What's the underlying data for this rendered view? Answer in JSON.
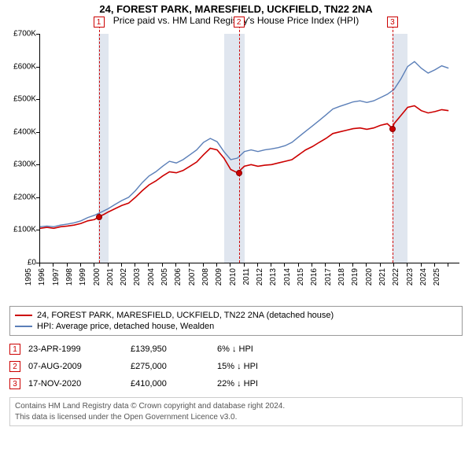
{
  "titles": {
    "main": "24, FOREST PARK, MARESFIELD, UCKFIELD, TN22 2NA",
    "sub": "Price paid vs. HM Land Registry's House Price Index (HPI)"
  },
  "chart": {
    "type": "line",
    "background_color": "#ffffff",
    "shade_color": "#e0e6ef",
    "axis_color": "#000000",
    "xlim": [
      1995,
      2025.8
    ],
    "ylim": [
      0,
      700000
    ],
    "yticks": [
      0,
      100000,
      200000,
      300000,
      400000,
      500000,
      600000,
      700000
    ],
    "ytick_labels": [
      "£0",
      "£100K",
      "£200K",
      "£300K",
      "£400K",
      "£500K",
      "£600K",
      "£700K"
    ],
    "xticks": [
      1995,
      1996,
      1997,
      1998,
      1999,
      2000,
      2001,
      2002,
      2003,
      2004,
      2005,
      2006,
      2007,
      2008,
      2009,
      2010,
      2011,
      2012,
      2013,
      2014,
      2015,
      2016,
      2017,
      2018,
      2019,
      2020,
      2021,
      2022,
      2023,
      2024,
      2025
    ],
    "xtick_labels": [
      "1995",
      "1996",
      "1997",
      "1998",
      "1999",
      "2000",
      "2001",
      "2002",
      "2003",
      "2004",
      "2005",
      "2006",
      "2007",
      "2008",
      "2009",
      "2010",
      "2011",
      "2012",
      "2013",
      "2014",
      "2015",
      "2016",
      "2017",
      "2018",
      "2019",
      "2020",
      "2021",
      "2022",
      "2023",
      "2024",
      "2025"
    ],
    "shaded_ranges": [
      [
        1999.3,
        2000.0
      ],
      [
        2008.5,
        2010.0
      ],
      [
        2020.9,
        2022.0
      ]
    ],
    "label_fontsize": 10,
    "series": [
      {
        "name": "property",
        "color": "#cc0000",
        "width": 1.6,
        "points": [
          [
            1995.0,
            105000
          ],
          [
            1995.5,
            108000
          ],
          [
            1996.0,
            105000
          ],
          [
            1996.5,
            110000
          ],
          [
            1997.0,
            112000
          ],
          [
            1997.5,
            115000
          ],
          [
            1998.0,
            120000
          ],
          [
            1998.5,
            128000
          ],
          [
            1999.0,
            132000
          ],
          [
            1999.3,
            139950
          ],
          [
            1999.7,
            148000
          ],
          [
            2000.0,
            155000
          ],
          [
            2000.5,
            165000
          ],
          [
            2001.0,
            175000
          ],
          [
            2001.5,
            182000
          ],
          [
            2002.0,
            200000
          ],
          [
            2002.5,
            220000
          ],
          [
            2003.0,
            238000
          ],
          [
            2003.5,
            250000
          ],
          [
            2004.0,
            265000
          ],
          [
            2004.5,
            278000
          ],
          [
            2005.0,
            275000
          ],
          [
            2005.5,
            282000
          ],
          [
            2006.0,
            295000
          ],
          [
            2006.5,
            308000
          ],
          [
            2007.0,
            330000
          ],
          [
            2007.5,
            350000
          ],
          [
            2008.0,
            345000
          ],
          [
            2008.5,
            320000
          ],
          [
            2009.0,
            285000
          ],
          [
            2009.5,
            275000
          ],
          [
            2010.0,
            295000
          ],
          [
            2010.5,
            300000
          ],
          [
            2011.0,
            295000
          ],
          [
            2011.5,
            298000
          ],
          [
            2012.0,
            300000
          ],
          [
            2012.5,
            305000
          ],
          [
            2013.0,
            310000
          ],
          [
            2013.5,
            315000
          ],
          [
            2014.0,
            330000
          ],
          [
            2014.5,
            345000
          ],
          [
            2015.0,
            355000
          ],
          [
            2015.5,
            368000
          ],
          [
            2016.0,
            380000
          ],
          [
            2016.5,
            395000
          ],
          [
            2017.0,
            400000
          ],
          [
            2017.5,
            405000
          ],
          [
            2018.0,
            410000
          ],
          [
            2018.5,
            412000
          ],
          [
            2019.0,
            408000
          ],
          [
            2019.5,
            412000
          ],
          [
            2020.0,
            420000
          ],
          [
            2020.5,
            425000
          ],
          [
            2020.9,
            410000
          ],
          [
            2021.0,
            425000
          ],
          [
            2021.5,
            450000
          ],
          [
            2022.0,
            475000
          ],
          [
            2022.5,
            480000
          ],
          [
            2023.0,
            465000
          ],
          [
            2023.5,
            458000
          ],
          [
            2024.0,
            462000
          ],
          [
            2024.5,
            468000
          ],
          [
            2025.0,
            465000
          ]
        ]
      },
      {
        "name": "hpi",
        "color": "#5b7fb8",
        "width": 1.4,
        "points": [
          [
            1995.0,
            110000
          ],
          [
            1995.5,
            112000
          ],
          [
            1996.0,
            110000
          ],
          [
            1996.5,
            115000
          ],
          [
            1997.0,
            118000
          ],
          [
            1997.5,
            122000
          ],
          [
            1998.0,
            128000
          ],
          [
            1998.5,
            138000
          ],
          [
            1999.0,
            145000
          ],
          [
            1999.5,
            155000
          ],
          [
            2000.0,
            165000
          ],
          [
            2000.5,
            178000
          ],
          [
            2001.0,
            190000
          ],
          [
            2001.5,
            200000
          ],
          [
            2002.0,
            220000
          ],
          [
            2002.5,
            245000
          ],
          [
            2003.0,
            265000
          ],
          [
            2003.5,
            278000
          ],
          [
            2004.0,
            295000
          ],
          [
            2004.5,
            310000
          ],
          [
            2005.0,
            305000
          ],
          [
            2005.5,
            315000
          ],
          [
            2006.0,
            330000
          ],
          [
            2006.5,
            345000
          ],
          [
            2007.0,
            368000
          ],
          [
            2007.5,
            380000
          ],
          [
            2008.0,
            370000
          ],
          [
            2008.5,
            340000
          ],
          [
            2009.0,
            315000
          ],
          [
            2009.5,
            320000
          ],
          [
            2010.0,
            340000
          ],
          [
            2010.5,
            345000
          ],
          [
            2011.0,
            340000
          ],
          [
            2011.5,
            345000
          ],
          [
            2012.0,
            348000
          ],
          [
            2012.5,
            352000
          ],
          [
            2013.0,
            358000
          ],
          [
            2013.5,
            368000
          ],
          [
            2014.0,
            385000
          ],
          [
            2014.5,
            402000
          ],
          [
            2015.0,
            418000
          ],
          [
            2015.5,
            435000
          ],
          [
            2016.0,
            452000
          ],
          [
            2016.5,
            470000
          ],
          [
            2017.0,
            478000
          ],
          [
            2017.5,
            485000
          ],
          [
            2018.0,
            492000
          ],
          [
            2018.5,
            495000
          ],
          [
            2019.0,
            490000
          ],
          [
            2019.5,
            495000
          ],
          [
            2020.0,
            505000
          ],
          [
            2020.5,
            515000
          ],
          [
            2021.0,
            530000
          ],
          [
            2021.5,
            562000
          ],
          [
            2022.0,
            600000
          ],
          [
            2022.5,
            615000
          ],
          [
            2023.0,
            595000
          ],
          [
            2023.5,
            580000
          ],
          [
            2024.0,
            590000
          ],
          [
            2024.5,
            602000
          ],
          [
            2025.0,
            595000
          ]
        ]
      }
    ],
    "markers": [
      {
        "n": "1",
        "x": 1999.31,
        "y": 139950
      },
      {
        "n": "2",
        "x": 2009.6,
        "y": 275000
      },
      {
        "n": "3",
        "x": 2020.88,
        "y": 410000
      }
    ]
  },
  "legend": {
    "items": [
      {
        "color": "#cc0000",
        "label": "24, FOREST PARK, MARESFIELD, UCKFIELD, TN22 2NA (detached house)"
      },
      {
        "color": "#5b7fb8",
        "label": "HPI: Average price, detached house, Wealden"
      }
    ]
  },
  "marker_table": [
    {
      "n": "1",
      "date": "23-APR-1999",
      "price": "£139,950",
      "delta": "6% ↓ HPI"
    },
    {
      "n": "2",
      "date": "07-AUG-2009",
      "price": "£275,000",
      "delta": "15% ↓ HPI"
    },
    {
      "n": "3",
      "date": "17-NOV-2020",
      "price": "£410,000",
      "delta": "22% ↓ HPI"
    }
  ],
  "footnote": {
    "line1": "Contains HM Land Registry data © Crown copyright and database right 2024.",
    "line2": "This data is licensed under the Open Government Licence v3.0."
  }
}
